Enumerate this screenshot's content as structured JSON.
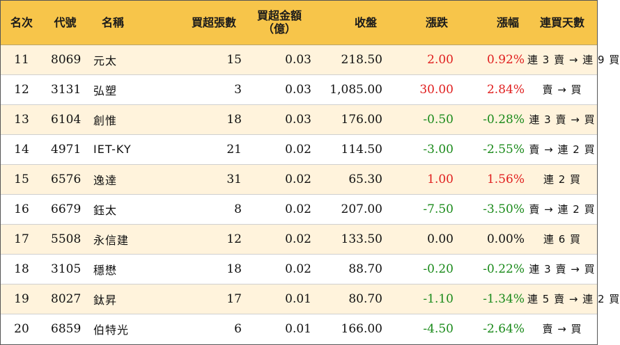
{
  "colors": {
    "header_bg": "#f7c54a",
    "row_alt_bg": "#fff3dc",
    "up": "#e01e1e",
    "down": "#1a8a1a"
  },
  "headers": {
    "rank": "名次",
    "code": "代號",
    "name": "名稱",
    "volume": "買超張數",
    "amount_line1": "買超金額",
    "amount_line2": "（億）",
    "close": "收盤",
    "change": "漲跌",
    "pct": "漲幅",
    "days": "連買天數"
  },
  "rows": [
    {
      "rank": "11",
      "code": "8069",
      "name": "元太",
      "volume": "15",
      "amount": "0.03",
      "close": "218.50",
      "change": "2.00",
      "pct": "0.92%",
      "dir": "up",
      "days": "連 3 賣 → 連 9 買"
    },
    {
      "rank": "12",
      "code": "3131",
      "name": "弘塑",
      "volume": "3",
      "amount": "0.03",
      "close": "1,085.00",
      "change": "30.00",
      "pct": "2.84%",
      "dir": "up",
      "days": "賣 → 買"
    },
    {
      "rank": "13",
      "code": "6104",
      "name": "創惟",
      "volume": "18",
      "amount": "0.03",
      "close": "176.00",
      "change": "-0.50",
      "pct": "-0.28%",
      "dir": "down",
      "days": "連 3 賣 → 買"
    },
    {
      "rank": "14",
      "code": "4971",
      "name": "IET-KY",
      "volume": "21",
      "amount": "0.02",
      "close": "114.50",
      "change": "-3.00",
      "pct": "-2.55%",
      "dir": "down",
      "days": "賣 → 連 2 買"
    },
    {
      "rank": "15",
      "code": "6576",
      "name": "逸達",
      "volume": "31",
      "amount": "0.02",
      "close": "65.30",
      "change": "1.00",
      "pct": "1.56%",
      "dir": "up",
      "days": "連 2 買"
    },
    {
      "rank": "16",
      "code": "6679",
      "name": "鈺太",
      "volume": "8",
      "amount": "0.02",
      "close": "207.00",
      "change": "-7.50",
      "pct": "-3.50%",
      "dir": "down",
      "days": "賣 → 連 2 買"
    },
    {
      "rank": "17",
      "code": "5508",
      "name": "永信建",
      "volume": "12",
      "amount": "0.02",
      "close": "133.50",
      "change": "0.00",
      "pct": "0.00%",
      "dir": "flat",
      "days": "連 6 買"
    },
    {
      "rank": "18",
      "code": "3105",
      "name": "穩懋",
      "volume": "18",
      "amount": "0.02",
      "close": "88.70",
      "change": "-0.20",
      "pct": "-0.22%",
      "dir": "down",
      "days": "連 3 賣 → 買"
    },
    {
      "rank": "19",
      "code": "8027",
      "name": "鈦昇",
      "volume": "17",
      "amount": "0.01",
      "close": "80.70",
      "change": "-1.10",
      "pct": "-1.34%",
      "dir": "down",
      "days": "連 5 賣 → 連 2 買"
    },
    {
      "rank": "20",
      "code": "6859",
      "name": "伯特光",
      "volume": "6",
      "amount": "0.01",
      "close": "166.00",
      "change": "-4.50",
      "pct": "-2.64%",
      "dir": "down",
      "days": "賣 → 買"
    }
  ]
}
